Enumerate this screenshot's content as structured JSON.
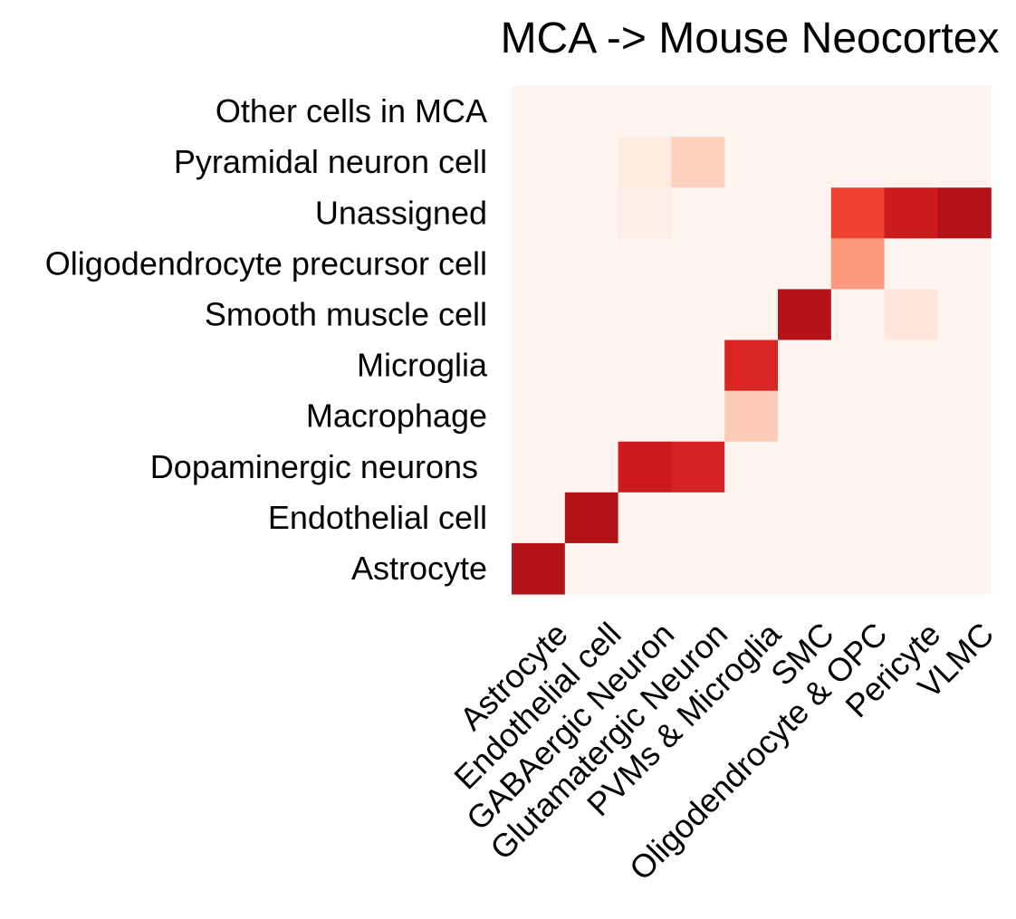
{
  "chart_data": {
    "type": "heatmap",
    "title": "MCA -> Mouse Neocortex",
    "xlabel": "",
    "ylabel": "",
    "x_categories": [
      "Astrocyte",
      "Endothelial cell",
      "GABAergic Neuron",
      "Glutamatergic Neuron",
      "PVMs & Microglia",
      "SMC",
      "Oligodendrocyte & OPC",
      "Pericyte",
      "VLMC"
    ],
    "y_categories_top_to_bottom": [
      "Other cells in MCA",
      "Pyramidal neuron cell",
      "Unassigned",
      "Oligodendrocyte precursor cell",
      "Smooth muscle cell",
      "Microglia",
      "Macrophage",
      "Dopaminergic neurons ",
      "Endothelial cell",
      "Astrocyte"
    ],
    "values": [
      [
        0,
        0,
        0,
        0,
        0,
        0,
        0,
        0,
        0
      ],
      [
        0,
        0,
        0.07,
        0.2,
        0,
        0,
        0,
        0,
        0
      ],
      [
        0,
        0,
        0.05,
        0,
        0,
        0,
        0.7,
        0.85,
        0.95
      ],
      [
        0,
        0,
        0,
        0,
        0,
        0,
        0.4,
        0,
        0
      ],
      [
        0,
        0,
        0,
        0,
        0,
        0.95,
        0,
        0.1,
        0
      ],
      [
        0,
        0,
        0,
        0,
        0.8,
        0,
        0,
        0,
        0
      ],
      [
        0,
        0,
        0,
        0,
        0.22,
        0,
        0,
        0,
        0
      ],
      [
        0,
        0,
        0.85,
        0.82,
        0,
        0,
        0,
        0,
        0
      ],
      [
        0,
        0.95,
        0,
        0,
        0,
        0,
        0,
        0,
        0
      ],
      [
        0.95,
        0,
        0,
        0,
        0,
        0,
        0,
        0,
        0
      ]
    ],
    "value_range": [
      0,
      1
    ],
    "colormap": [
      "#fff5f0",
      "#fee0d2",
      "#fcbba1",
      "#fc9272",
      "#fb6a4a",
      "#ef3b2c",
      "#cb181d",
      "#a50f15"
    ],
    "grid": false,
    "colorbar": false
  }
}
